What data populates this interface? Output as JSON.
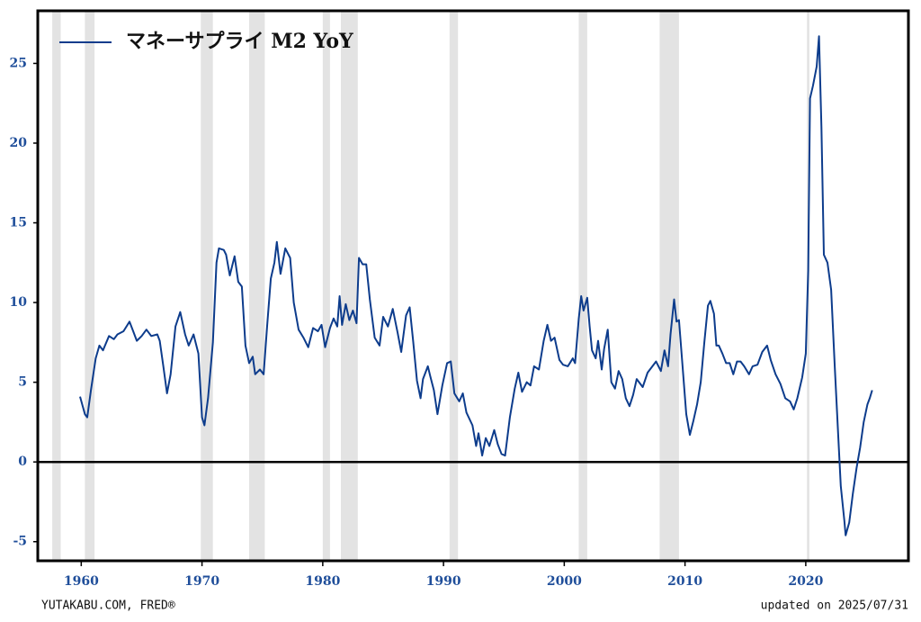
{
  "chart_data": {
    "type": "line",
    "legend": "top-left",
    "grid": false,
    "source": "YUTAKABU.COM, FRED®",
    "updated": "updated on 2025/07/31",
    "xlim": [
      1956.4,
      2028.5
    ],
    "ylim": [
      -6.2,
      28.3
    ],
    "xticks": [
      1960,
      1970,
      1980,
      1990,
      2000,
      2010,
      2020
    ],
    "yticks": [
      -5,
      0,
      5,
      10,
      15,
      20,
      25
    ],
    "recession_color": "#e3e3e3",
    "recessions": [
      [
        1957.6,
        1958.3
      ],
      [
        1960.3,
        1961.1
      ],
      [
        1969.9,
        1970.9
      ],
      [
        1973.9,
        1975.2
      ],
      [
        1980.0,
        1980.6
      ],
      [
        1981.5,
        1982.9
      ],
      [
        1990.5,
        1991.2
      ],
      [
        2001.2,
        2001.9
      ],
      [
        2007.9,
        2009.5
      ],
      [
        2020.1,
        2020.3
      ]
    ],
    "series": [
      {
        "name": "マネーサプライ M2 YoY",
        "color": "#0d3c8c",
        "x": [
          1959.9,
          1960.3,
          1960.5,
          1960.8,
          1961.2,
          1961.5,
          1961.8,
          1962.3,
          1962.7,
          1963.0,
          1963.5,
          1964.0,
          1964.3,
          1964.6,
          1965.0,
          1965.4,
          1965.8,
          1966.3,
          1966.5,
          1966.8,
          1967.1,
          1967.4,
          1967.8,
          1968.2,
          1968.6,
          1968.9,
          1969.3,
          1969.7,
          1970.0,
          1970.2,
          1970.5,
          1970.9,
          1971.2,
          1971.4,
          1971.8,
          1972.0,
          1972.3,
          1972.7,
          1973.0,
          1973.3,
          1973.6,
          1973.9,
          1974.2,
          1974.4,
          1974.8,
          1975.1,
          1975.4,
          1975.7,
          1976.0,
          1976.2,
          1976.5,
          1976.9,
          1977.3,
          1977.6,
          1978.0,
          1978.4,
          1978.8,
          1979.2,
          1979.6,
          1979.9,
          1980.2,
          1980.6,
          1980.9,
          1981.2,
          1981.4,
          1981.6,
          1981.9,
          1982.2,
          1982.5,
          1982.8,
          1983.0,
          1983.3,
          1983.6,
          1983.9,
          1984.3,
          1984.7,
          1985.0,
          1985.4,
          1985.8,
          1986.2,
          1986.5,
          1986.9,
          1987.2,
          1987.5,
          1987.8,
          1988.1,
          1988.3,
          1988.7,
          1988.9,
          1989.2,
          1989.5,
          1989.9,
          1990.3,
          1990.6,
          1990.9,
          1991.3,
          1991.6,
          1991.9,
          1992.4,
          1992.7,
          1992.9,
          1993.2,
          1993.5,
          1993.8,
          1994.2,
          1994.5,
          1994.8,
          1995.1,
          1995.5,
          1995.9,
          1996.2,
          1996.5,
          1996.9,
          1997.2,
          1997.5,
          1997.9,
          1998.3,
          1998.6,
          1998.9,
          1999.2,
          1999.6,
          1999.9,
          2000.3,
          2000.7,
          2000.9,
          2001.2,
          2001.4,
          2001.6,
          2001.9,
          2002.1,
          2002.3,
          2002.6,
          2002.8,
          2003.1,
          2003.3,
          2003.6,
          2003.9,
          2004.2,
          2004.5,
          2004.8,
          2005.1,
          2005.4,
          2005.7,
          2006.0,
          2006.5,
          2006.9,
          2007.3,
          2007.6,
          2008.0,
          2008.3,
          2008.6,
          2008.8,
          2009.1,
          2009.3,
          2009.5,
          2009.8,
          2010.1,
          2010.4,
          2010.7,
          2011.0,
          2011.3,
          2011.6,
          2011.9,
          2012.1,
          2012.4,
          2012.6,
          2012.8,
          2013.1,
          2013.4,
          2013.7,
          2014.0,
          2014.3,
          2014.6,
          2014.9,
          2015.3,
          2015.6,
          2016.0,
          2016.4,
          2016.8,
          2017.1,
          2017.5,
          2017.9,
          2018.3,
          2018.7,
          2019.0,
          2019.3,
          2019.7,
          2020.0,
          2020.2,
          2020.35,
          2020.6,
          2020.9,
          2021.1,
          2021.3,
          2021.5,
          2021.8,
          2022.1,
          2022.4,
          2022.7,
          2022.9,
          2023.2,
          2023.3,
          2023.6,
          2023.9,
          2024.2,
          2024.5,
          2024.8,
          2025.1,
          2025.3,
          2025.5
        ],
        "values": [
          4.1,
          3.0,
          2.8,
          4.5,
          6.5,
          7.3,
          7.0,
          7.9,
          7.7,
          8.0,
          8.2,
          8.8,
          8.2,
          7.6,
          7.9,
          8.3,
          7.9,
          8.0,
          7.6,
          6.0,
          4.3,
          5.5,
          8.5,
          9.4,
          8.0,
          7.3,
          8.0,
          6.8,
          2.8,
          2.3,
          4.0,
          7.5,
          12.5,
          13.4,
          13.3,
          13.0,
          11.7,
          12.9,
          11.3,
          11.0,
          7.3,
          6.2,
          6.6,
          5.5,
          5.8,
          5.5,
          8.6,
          11.5,
          12.5,
          13.8,
          11.8,
          13.4,
          12.8,
          10.0,
          8.3,
          7.8,
          7.2,
          8.4,
          8.2,
          8.6,
          7.2,
          8.4,
          9.0,
          8.5,
          10.4,
          8.6,
          9.9,
          8.9,
          9.5,
          8.7,
          12.8,
          12.4,
          12.4,
          10.2,
          7.8,
          7.3,
          9.1,
          8.5,
          9.6,
          8.1,
          6.9,
          9.2,
          9.7,
          7.5,
          5.1,
          4.0,
          5.2,
          6.0,
          5.4,
          4.5,
          3.0,
          4.8,
          6.2,
          6.3,
          4.3,
          3.8,
          4.3,
          3.1,
          2.3,
          1.0,
          1.8,
          0.4,
          1.5,
          1.0,
          2.0,
          1.1,
          0.5,
          0.4,
          2.8,
          4.6,
          5.6,
          4.4,
          5.0,
          4.8,
          6.0,
          5.8,
          7.6,
          8.6,
          7.6,
          7.8,
          6.4,
          6.1,
          6.0,
          6.5,
          6.2,
          9.0,
          10.4,
          9.5,
          10.3,
          8.5,
          7.0,
          6.5,
          7.6,
          5.8,
          7.1,
          8.3,
          5.0,
          4.6,
          5.7,
          5.2,
          4.0,
          3.5,
          4.2,
          5.2,
          4.7,
          5.6,
          6.0,
          6.3,
          5.7,
          7.0,
          6.0,
          8.0,
          10.2,
          8.8,
          8.9,
          6.0,
          3.0,
          1.7,
          2.6,
          3.6,
          5.0,
          7.5,
          9.8,
          10.1,
          9.3,
          7.3,
          7.3,
          6.8,
          6.2,
          6.2,
          5.5,
          6.3,
          6.3,
          6.0,
          5.5,
          6.0,
          6.1,
          6.9,
          7.3,
          6.4,
          5.5,
          4.9,
          4.0,
          3.8,
          3.3,
          4.0,
          5.3,
          6.8,
          12.0,
          22.8,
          23.6,
          24.8,
          26.7,
          21.0,
          13.0,
          12.5,
          10.8,
          6.0,
          1.5,
          -1.5,
          -3.7,
          -4.6,
          -3.8,
          -2.0,
          -0.4,
          0.9,
          2.5,
          3.6,
          4.0,
          4.5
        ]
      }
    ]
  }
}
